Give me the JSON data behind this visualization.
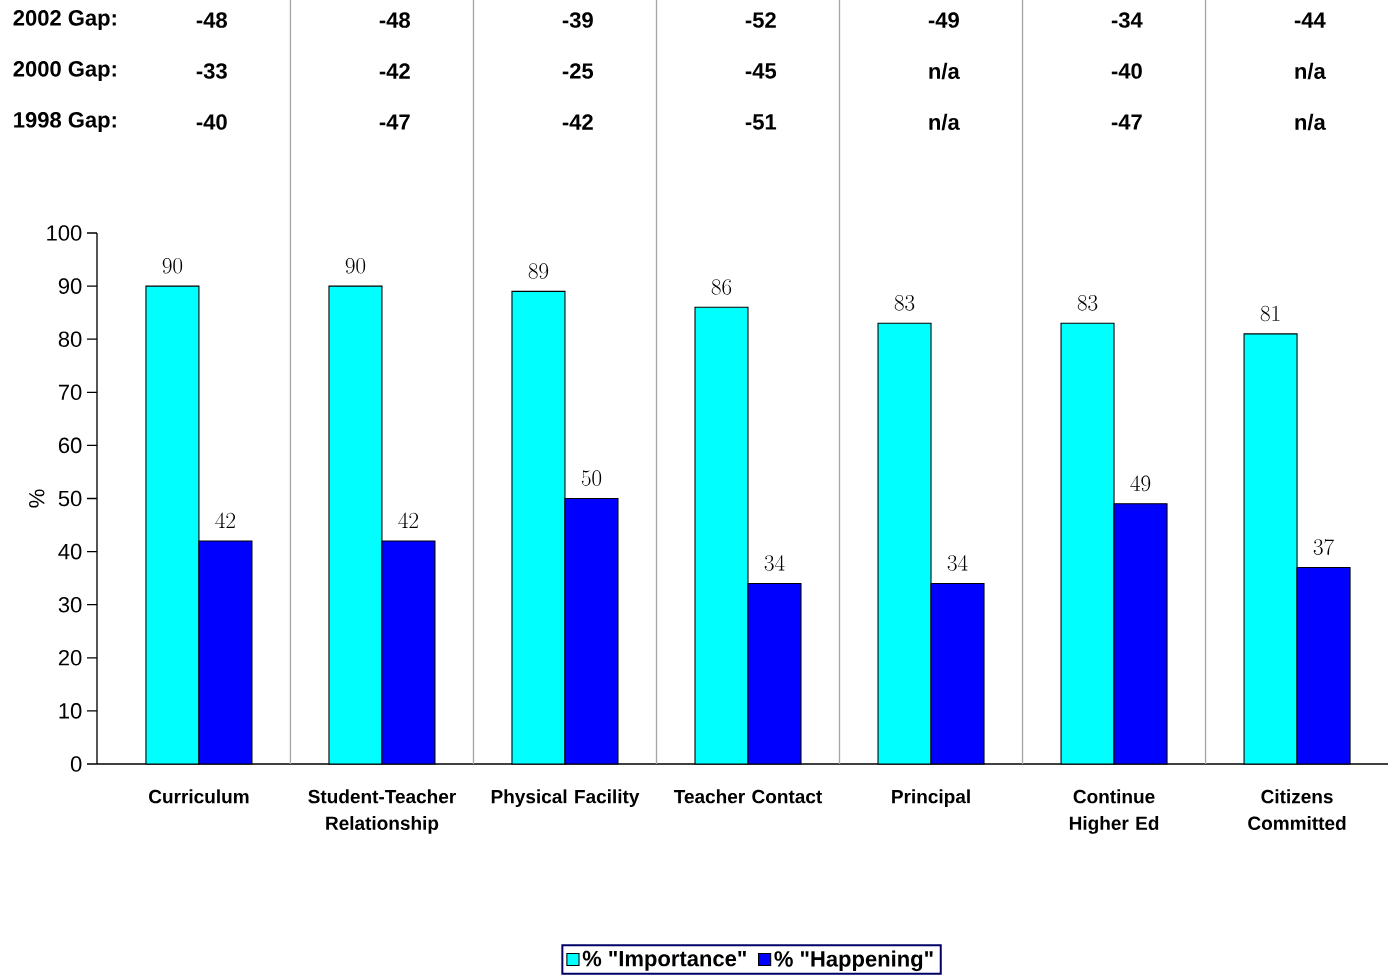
{
  "chart_data": {
    "type": "bar",
    "ylabel": "%",
    "categories": [
      "Curriculum",
      "Student-Teacher Relationship",
      "Physical Facility",
      "Teacher Contact",
      "Principal",
      "Continue Higher Ed",
      "Citizens Committed"
    ],
    "series": [
      {
        "name": "% \"Importance\"",
        "color": "#00ffff",
        "values": [
          90,
          90,
          89,
          86,
          83,
          83,
          81
        ]
      },
      {
        "name": "% \"Happening\"",
        "color": "#0000ff",
        "values": [
          42,
          42,
          50,
          34,
          34,
          49,
          37
        ]
      }
    ],
    "ylim": [
      0,
      100
    ],
    "yticks": [
      0,
      10,
      20,
      30,
      40,
      50,
      60,
      70,
      80,
      90,
      100
    ],
    "data_labels": true,
    "legend": "bottom",
    "annotations": [
      "2002 Gap:",
      "-48",
      "-48",
      "-39",
      "-52",
      "-49",
      "-34",
      "-44",
      "2000 Gap:",
      "-33",
      "-42",
      "-25",
      "-45",
      "n/a",
      "-40",
      "n/a",
      "1998 Gap:",
      "-40",
      "-47",
      "-42",
      "-51",
      "n/a",
      "-47",
      "n/a"
    ]
  }
}
